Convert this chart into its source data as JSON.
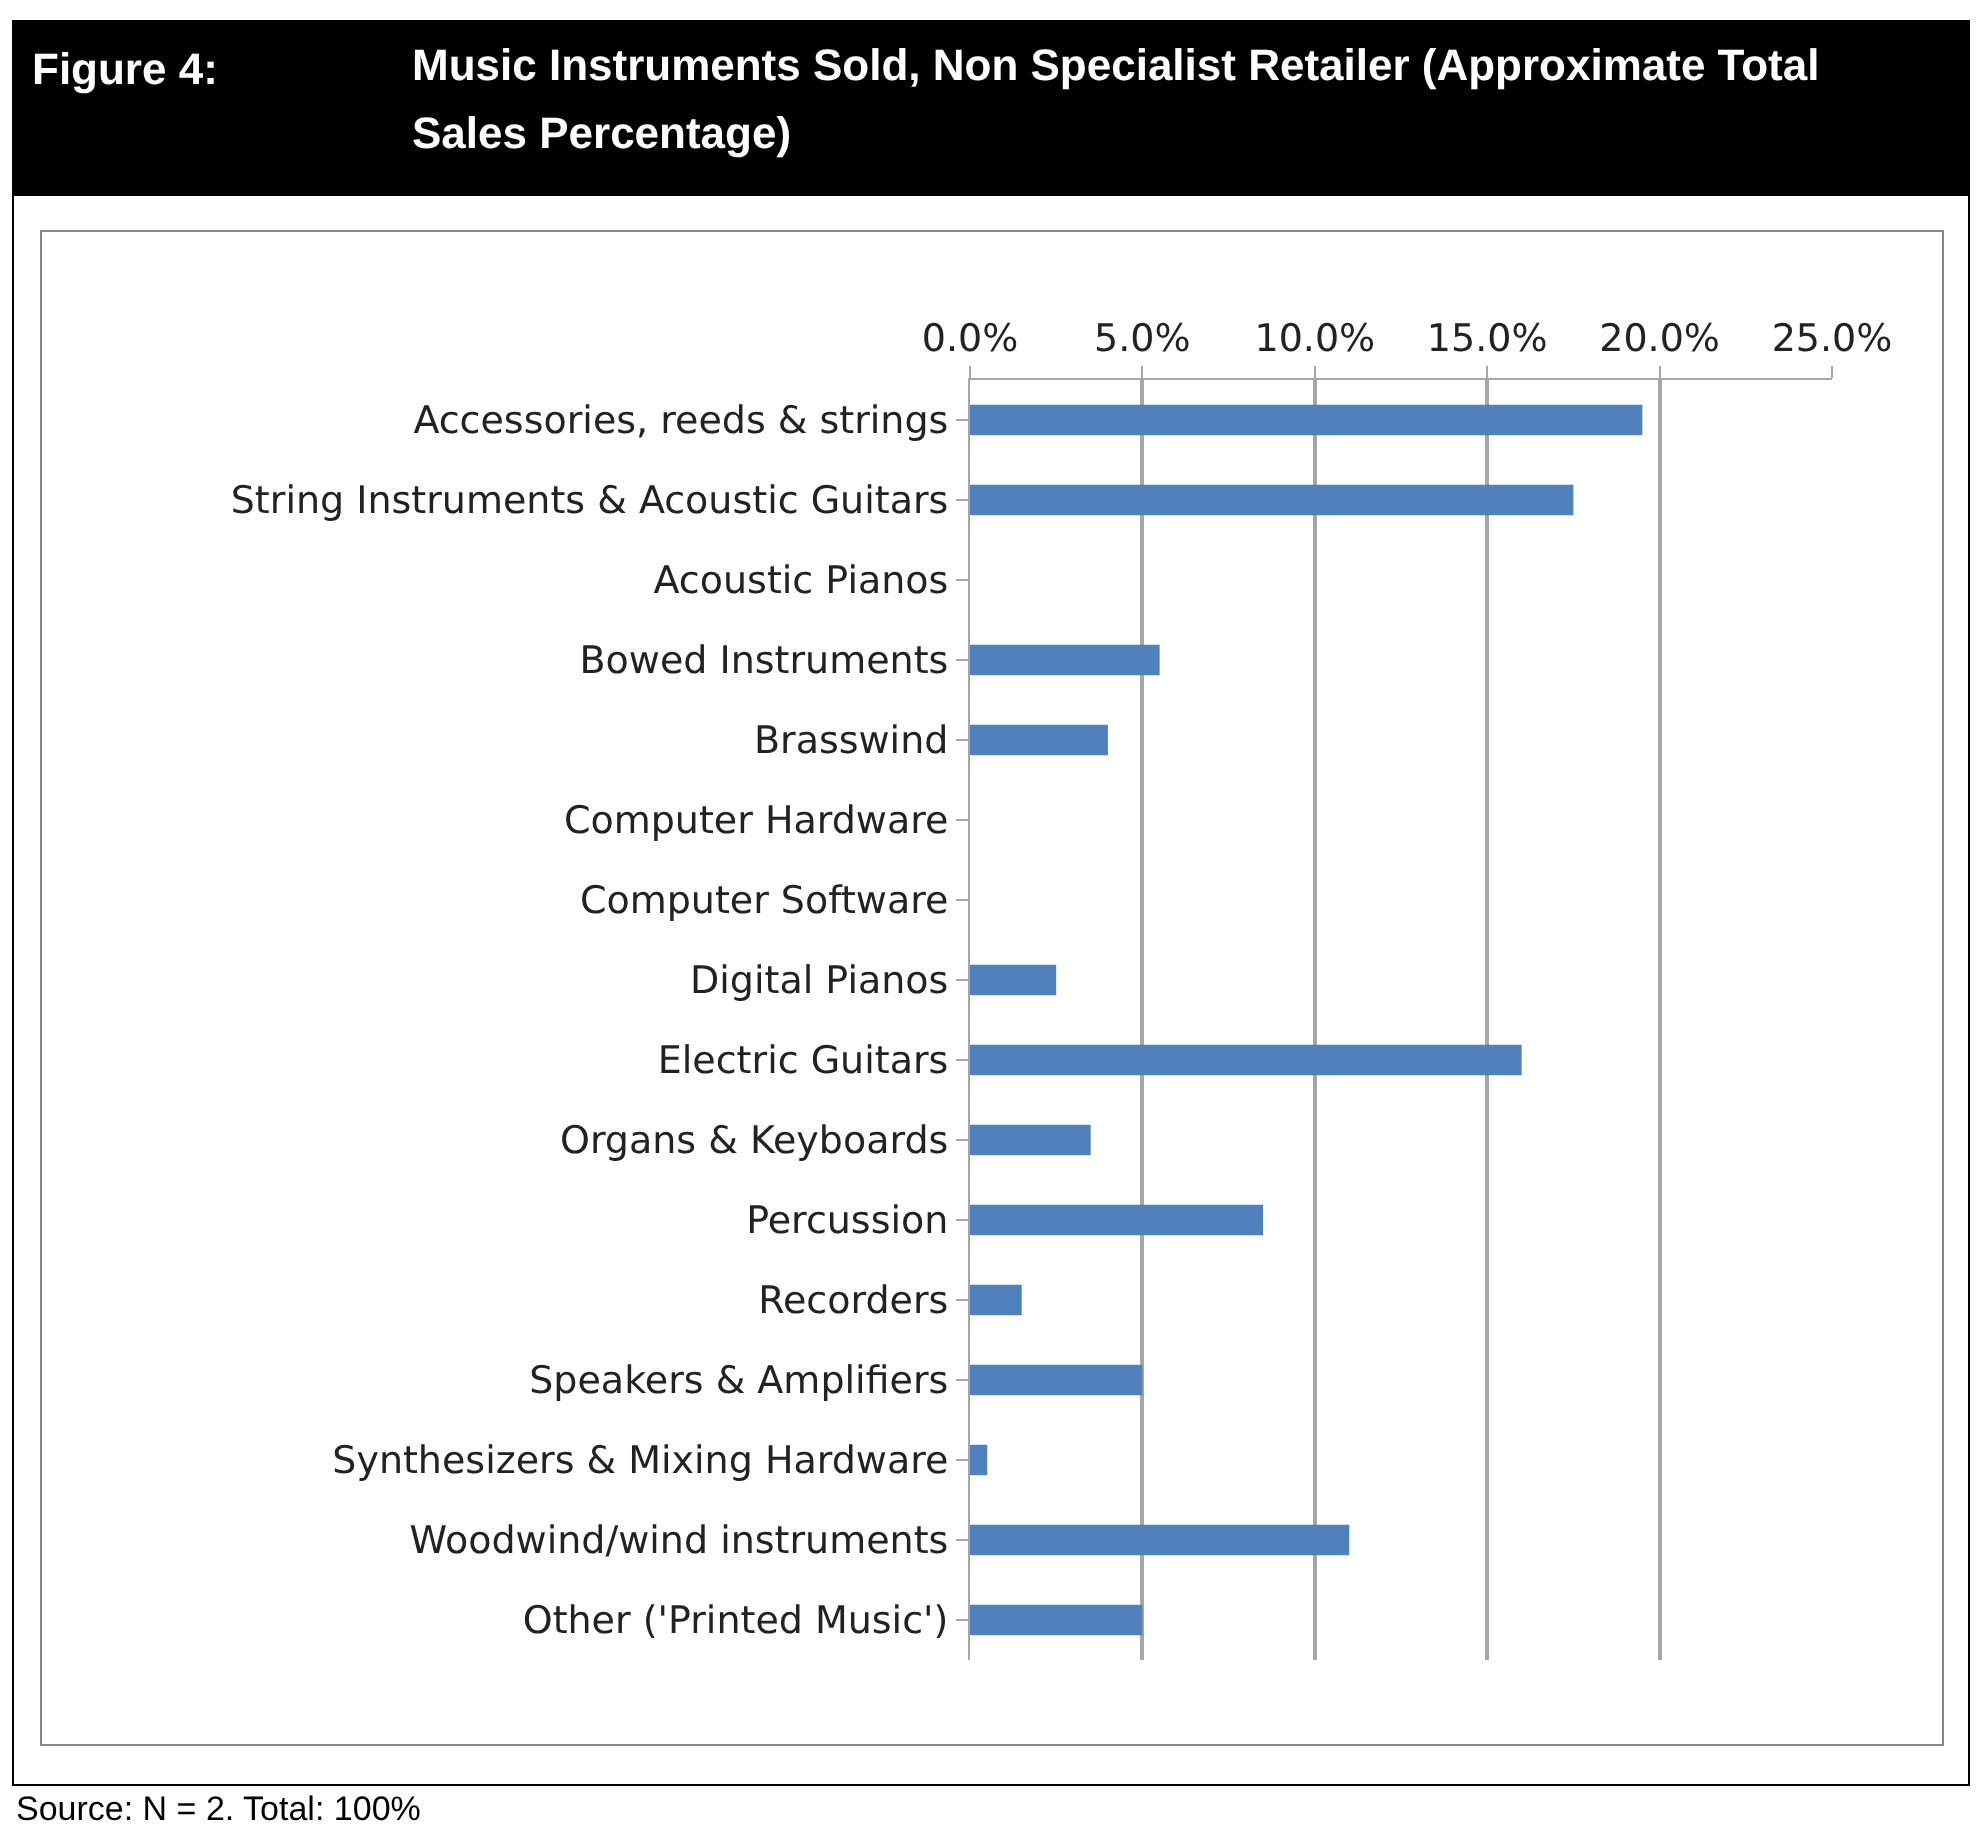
{
  "chart_data": {
    "type": "bar",
    "orientation": "horizontal",
    "title": "Figure 4:\tMusic Instruments Sold, Non Specialist Retailer (Approximate Total Sales Percentage)",
    "categories": [
      "Accessories, reeds & strings",
      "String Instruments & Acoustic Guitars",
      "Acoustic Pianos",
      "Bowed Instruments",
      "Brasswind",
      "Computer Hardware",
      "Computer Software",
      "Digital Pianos",
      "Electric Guitars",
      "Organs & Keyboards",
      "Percussion",
      "Recorders",
      "Speakers & Amplifiers",
      "Synthesizers & Mixing Hardware",
      "Woodwind/wind instruments",
      "Other ('Printed Music')"
    ],
    "values": [
      19.5,
      17.5,
      0,
      5.5,
      4.0,
      0,
      0,
      2.5,
      16.0,
      3.5,
      8.5,
      1.5,
      5.0,
      0.5,
      11.0,
      5.0
    ],
    "color": "#4f81bd",
    "xlim": [
      0,
      25
    ],
    "xticks": [
      {
        "value": 0,
        "label": "0.0%"
      },
      {
        "value": 5,
        "label": "5.0%"
      },
      {
        "value": 10,
        "label": "10.0%"
      },
      {
        "value": 15,
        "label": "15.0%"
      },
      {
        "value": 20,
        "label": "20.0%"
      },
      {
        "value": 25,
        "label": "25.0%"
      }
    ],
    "grid": "x",
    "annotations": [
      "Source: N = 2. Total: 100%"
    ]
  }
}
